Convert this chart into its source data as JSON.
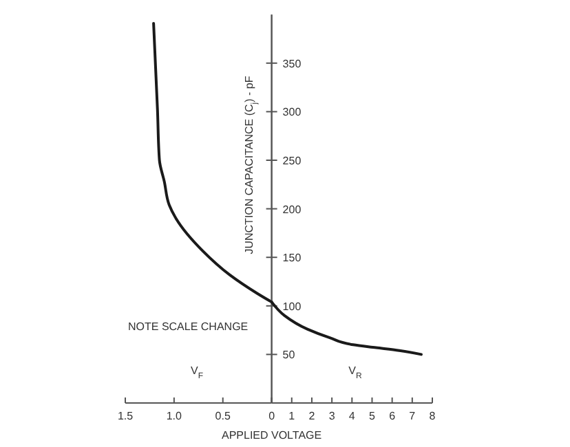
{
  "chart_data": [
    {
      "type": "line",
      "xlabel": "APPLIED VOLTAGE",
      "annotations": [
        "NOTE SCALE CHANGE",
        "V$_{F}$"
      ],
      "xlim": [
        1.5,
        0
      ],
      "xticks": [
        {
          "value": 1.5,
          "label": "1.5"
        },
        {
          "value": 1.0,
          "label": "1.0"
        },
        {
          "value": 0.5,
          "label": "0.5"
        },
        {
          "value": 0,
          "label": null
        }
      ],
      "ylim": [
        0,
        400
      ],
      "tick_labels": "x",
      "grid": false,
      "series": [
        {
          "color": "#1a1a1a",
          "x": [
            1.21,
            1.17,
            1.15,
            1.1,
            1.05,
            0.98,
            0.71,
            0.43,
            0.15,
            0
          ],
          "values": [
            391,
            302,
            250,
            228,
            204,
            190,
            157,
            132,
            113,
            104
          ]
        }
      ]
    },
    {
      "type": "line",
      "ylabel": "JUNCTION CAPACITANCE (C$_{j}$) - pF",
      "annotations": [
        "V$_{R}$"
      ],
      "xlim": [
        0,
        8
      ],
      "xticks": [
        0,
        1,
        2,
        3,
        4,
        5,
        6,
        7,
        8
      ],
      "ylim": [
        0,
        400
      ],
      "yticks": [
        50,
        100,
        150,
        200,
        250,
        300,
        350
      ],
      "grid": false,
      "series": [
        {
          "color": "#1a1a1a",
          "x": [
            0,
            0.64,
            1.78,
            2.92,
            4.06,
            5.2,
            6.35,
            7.45
          ],
          "values": [
            104,
            90,
            76,
            67,
            60,
            57,
            54,
            50
          ]
        }
      ]
    }
  ]
}
